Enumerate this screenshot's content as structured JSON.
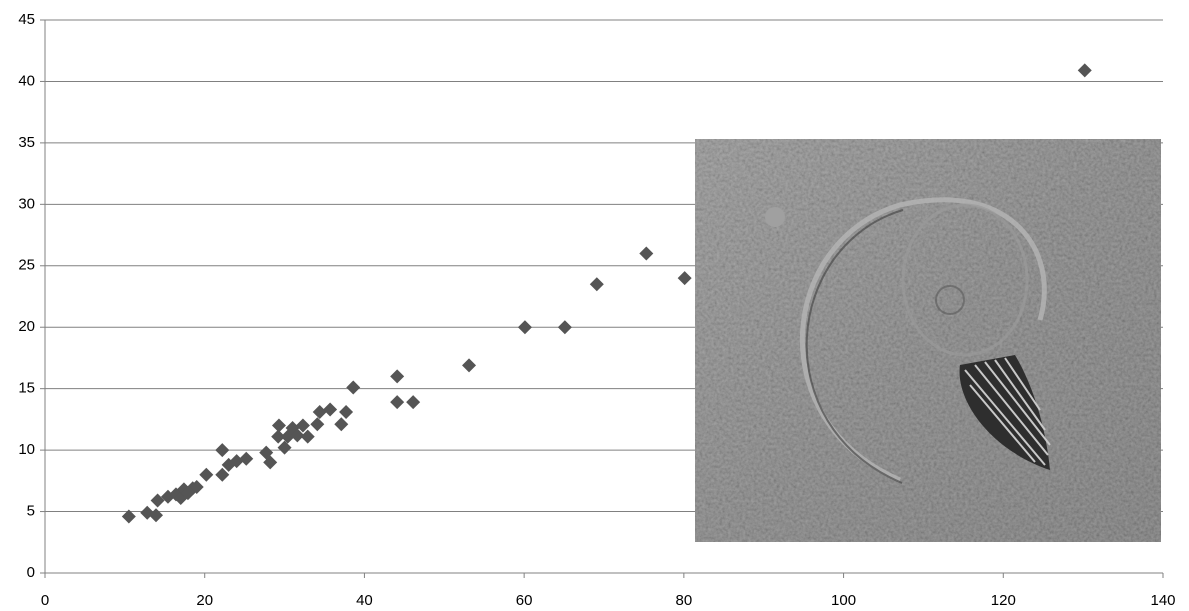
{
  "chart_data": {
    "type": "scatter",
    "x": [
      10.5,
      12.8,
      13.9,
      14.1,
      15.4,
      16.4,
      17.0,
      17.4,
      17.9,
      18.5,
      19.0,
      20.2,
      22.2,
      22.2,
      23.0,
      24.0,
      25.2,
      27.7,
      28.2,
      29.2,
      29.3,
      30.0,
      30.4,
      31.0,
      31.6,
      32.3,
      32.9,
      34.1,
      34.4,
      35.7,
      37.1,
      37.7,
      38.6,
      44.1,
      44.1,
      46.1,
      53.1,
      60.1,
      65.1,
      69.1,
      75.3,
      80.1,
      130.2
    ],
    "values": [
      4.6,
      4.9,
      4.7,
      5.9,
      6.2,
      6.4,
      6.1,
      6.8,
      6.5,
      6.9,
      7.0,
      8.0,
      8.0,
      10.0,
      8.8,
      9.1,
      9.3,
      9.8,
      9.0,
      11.1,
      12.0,
      10.2,
      11.1,
      11.8,
      11.2,
      12.0,
      11.1,
      12.1,
      13.1,
      13.3,
      12.1,
      13.1,
      15.1,
      16.0,
      13.9,
      13.9,
      16.9,
      20.0,
      20.0,
      23.5,
      26.0,
      24.0,
      40.9
    ],
    "color": "#555555",
    "xlim": [
      0,
      140
    ],
    "xticks": [
      0,
      20,
      40,
      60,
      80,
      100,
      120,
      140
    ],
    "ylim": [
      0,
      45
    ],
    "yticks": [
      0,
      5,
      10,
      15,
      20,
      25,
      30,
      35,
      40,
      45
    ],
    "grid": true
  }
}
